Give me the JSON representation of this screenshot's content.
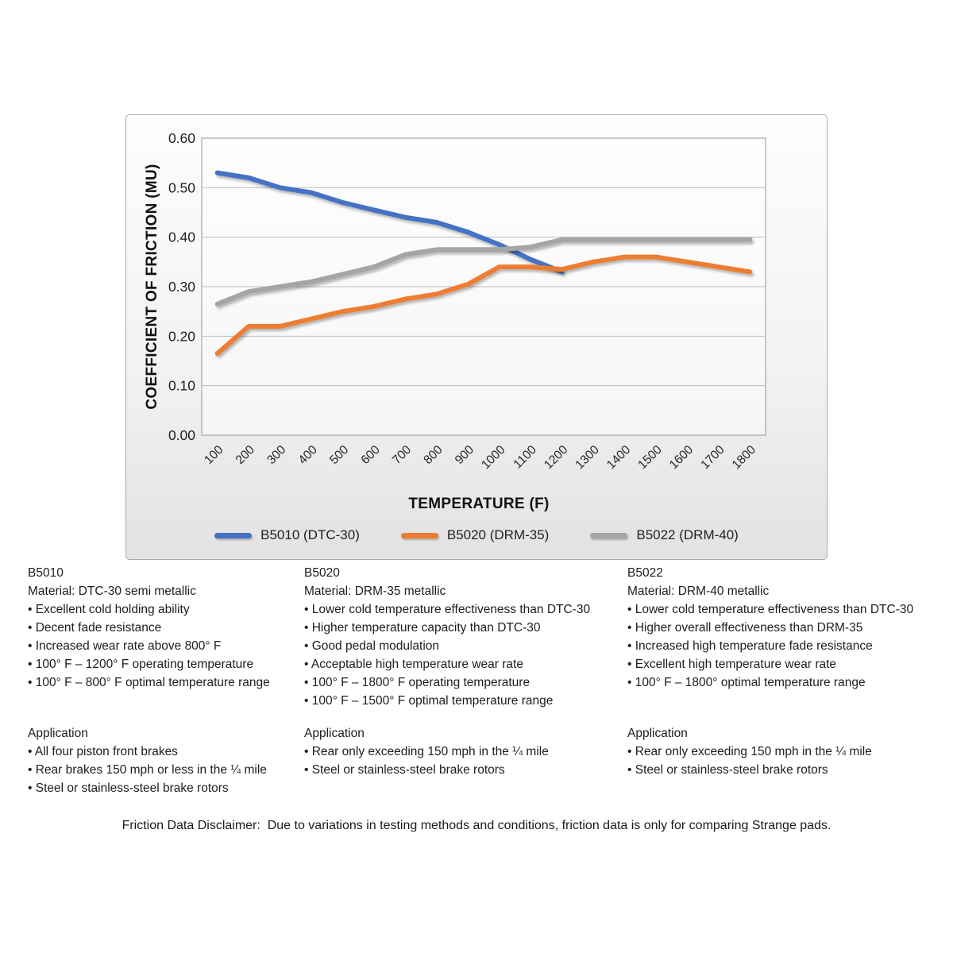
{
  "chart_data": {
    "type": "line",
    "title": "",
    "xlabel": "TEMPERATURE (F)",
    "ylabel": "COEFFICIENT OF FRICTION (MU)",
    "categories": [
      "100",
      "200",
      "300",
      "400",
      "500",
      "600",
      "700",
      "800",
      "900",
      "1000",
      "1100",
      "1200",
      "1300",
      "1400",
      "1500",
      "1600",
      "1700",
      "1800"
    ],
    "ylim": [
      0,
      0.6
    ],
    "ytick_labels": [
      "0.00",
      "0.10",
      "0.20",
      "0.30",
      "0.40",
      "0.50",
      "0.60"
    ],
    "grid": "horizontal",
    "legend_position": "bottom",
    "series": [
      {
        "name": "B5010 (DTC-30)",
        "color": "#4472C4",
        "values": [
          0.53,
          0.52,
          0.5,
          0.49,
          0.47,
          0.455,
          0.44,
          0.43,
          0.41,
          0.385,
          0.355,
          0.33
        ]
      },
      {
        "name": "B5020 (DRM-35)",
        "color": "#ED7D31",
        "values": [
          0.165,
          0.22,
          0.22,
          0.235,
          0.25,
          0.26,
          0.275,
          0.285,
          0.305,
          0.34,
          0.34,
          0.335,
          0.35,
          0.36,
          0.36,
          0.35,
          0.34,
          0.33
        ]
      },
      {
        "name": "B5022 (DRM-40)",
        "color": "#A5A5A5",
        "values": [
          0.265,
          0.29,
          0.3,
          0.31,
          0.325,
          0.34,
          0.365,
          0.375,
          0.375,
          0.375,
          0.38,
          0.395,
          0.395,
          0.395,
          0.395,
          0.395,
          0.395,
          0.395
        ]
      }
    ]
  },
  "products": [
    {
      "code": "B5010",
      "material": "Material: DTC-30 semi metallic",
      "features": [
        "Excellent cold holding ability",
        "Decent fade resistance",
        "Increased wear rate above 800° F",
        "100° F – 1200° F operating temperature",
        "100° F – 800° F optimal temperature range"
      ],
      "application_heading": "Application",
      "applications": [
        "All four piston front brakes",
        "Rear brakes 150 mph or less in the ¼ mile",
        "Steel or stainless-steel brake rotors"
      ]
    },
    {
      "code": "B5020",
      "material": "Material: DRM-35 metallic",
      "features": [
        "Lower cold temperature effectiveness than DTC-30",
        "Higher temperature capacity than DTC-30",
        "Good pedal modulation",
        "Acceptable high temperature wear rate",
        "100° F – 1800° F operating temperature",
        "100° F – 1500° F optimal temperature range"
      ],
      "application_heading": "Application",
      "applications": [
        "Rear only exceeding 150 mph in the ¼ mile",
        "Steel or stainless-steel brake rotors"
      ]
    },
    {
      "code": "B5022",
      "material": "Material: DRM-40 metallic",
      "features": [
        "Lower cold temperature effectiveness than DTC-30",
        "Higher overall effectiveness than DRM-35",
        "Increased high temperature fade resistance",
        "Excellent high temperature wear rate",
        "100° F – 1800° optimal temperature range"
      ],
      "application_heading": "Application",
      "applications": [
        "Rear only exceeding 150 mph in the ¼ mile",
        "Steel or stainless-steel brake rotors"
      ]
    }
  ],
  "bullet_glyph": "•",
  "disclaimer": "Friction Data Disclaimer:  Due to variations in testing methods and conditions, friction data is only for comparing Strange pads."
}
